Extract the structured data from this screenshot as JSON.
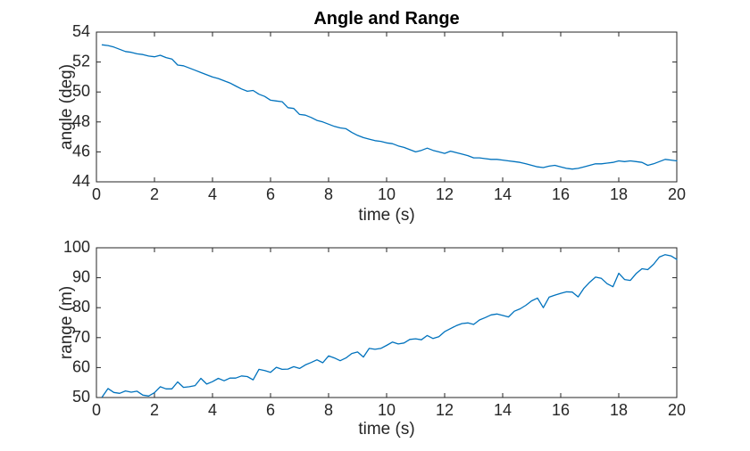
{
  "figure": {
    "title": "Angle and Range",
    "background_color": "#ffffff",
    "axis_color": "#262626",
    "line_color": "#0072BD"
  },
  "chart_data": [
    {
      "type": "line",
      "name": "angle",
      "title": "Angle and Range",
      "xlabel": "time (s)",
      "ylabel": "angle (deg)",
      "xlim": [
        0,
        20
      ],
      "ylim": [
        44,
        54
      ],
      "xticks": [
        0,
        2,
        4,
        6,
        8,
        10,
        12,
        14,
        16,
        18,
        20
      ],
      "yticks": [
        44,
        46,
        48,
        50,
        52,
        54
      ],
      "grid": false,
      "legend": null,
      "line_color": "#0072BD",
      "x": [
        0.2,
        0.4,
        0.6,
        0.8,
        1,
        1.2,
        1.4,
        1.6,
        1.8,
        2,
        2.2,
        2.4,
        2.6,
        2.8,
        3,
        3.2,
        3.4,
        3.6,
        3.8,
        4,
        4.2,
        4.4,
        4.6,
        4.8,
        5,
        5.2,
        5.4,
        5.6,
        5.8,
        6,
        6.2,
        6.4,
        6.6,
        6.8,
        7,
        7.2,
        7.4,
        7.6,
        7.8,
        8,
        8.2,
        8.4,
        8.6,
        8.8,
        9,
        9.2,
        9.4,
        9.6,
        9.8,
        10,
        10.2,
        10.4,
        10.6,
        10.8,
        11,
        11.2,
        11.4,
        11.6,
        11.8,
        12,
        12.2,
        12.4,
        12.6,
        12.8,
        13,
        13.2,
        13.4,
        13.6,
        13.8,
        14,
        14.2,
        14.4,
        14.6,
        14.8,
        15,
        15.2,
        15.4,
        15.6,
        15.8,
        16,
        16.2,
        16.4,
        16.6,
        16.8,
        17,
        17.2,
        17.4,
        17.6,
        17.8,
        18,
        18.2,
        18.4,
        18.6,
        18.8,
        19,
        19.2,
        19.4,
        19.6,
        19.8,
        20
      ],
      "y": [
        53.15,
        53.1,
        53.0,
        52.85,
        52.7,
        52.65,
        52.55,
        52.5,
        52.4,
        52.35,
        52.45,
        52.3,
        52.2,
        51.8,
        51.75,
        51.6,
        51.45,
        51.3,
        51.15,
        51.0,
        50.9,
        50.75,
        50.6,
        50.4,
        50.2,
        50.05,
        50.1,
        49.85,
        49.7,
        49.45,
        49.4,
        49.35,
        48.95,
        48.9,
        48.5,
        48.45,
        48.3,
        48.1,
        48.0,
        47.85,
        47.7,
        47.6,
        47.55,
        47.3,
        47.1,
        46.95,
        46.85,
        46.75,
        46.7,
        46.6,
        46.55,
        46.4,
        46.3,
        46.15,
        46.0,
        46.1,
        46.25,
        46.1,
        46.0,
        45.9,
        46.05,
        45.95,
        45.85,
        45.75,
        45.6,
        45.6,
        45.55,
        45.5,
        45.5,
        45.45,
        45.4,
        45.35,
        45.3,
        45.2,
        45.1,
        45.0,
        44.95,
        45.05,
        45.1,
        45.0,
        44.9,
        44.85,
        44.9,
        45.0,
        45.1,
        45.2,
        45.2,
        45.25,
        45.3,
        45.4,
        45.35,
        45.4,
        45.35,
        45.3,
        45.1,
        45.2,
        45.35,
        45.5,
        45.45,
        45.4
      ]
    },
    {
      "type": "line",
      "name": "range",
      "title": "",
      "xlabel": "time (s)",
      "ylabel": "range (m)",
      "xlim": [
        0,
        20
      ],
      "ylim": [
        50,
        100
      ],
      "xticks": [
        0,
        2,
        4,
        6,
        8,
        10,
        12,
        14,
        16,
        18,
        20
      ],
      "yticks": [
        50,
        60,
        70,
        80,
        90,
        100
      ],
      "grid": false,
      "legend": null,
      "line_color": "#0072BD",
      "x": [
        0.2,
        0.4,
        0.6,
        0.8,
        1,
        1.2,
        1.4,
        1.6,
        1.8,
        2,
        2.2,
        2.4,
        2.6,
        2.8,
        3,
        3.2,
        3.4,
        3.6,
        3.8,
        4,
        4.2,
        4.4,
        4.6,
        4.8,
        5,
        5.2,
        5.4,
        5.6,
        5.8,
        6,
        6.2,
        6.4,
        6.6,
        6.8,
        7,
        7.2,
        7.4,
        7.6,
        7.8,
        8,
        8.2,
        8.4,
        8.6,
        8.8,
        9,
        9.2,
        9.4,
        9.6,
        9.8,
        10,
        10.2,
        10.4,
        10.6,
        10.8,
        11,
        11.2,
        11.4,
        11.6,
        11.8,
        12,
        12.2,
        12.4,
        12.6,
        12.8,
        13,
        13.2,
        13.4,
        13.6,
        13.8,
        14,
        14.2,
        14.4,
        14.6,
        14.8,
        15,
        15.2,
        15.4,
        15.6,
        15.8,
        16,
        16.2,
        16.4,
        16.6,
        16.8,
        17,
        17.2,
        17.4,
        17.6,
        17.8,
        18,
        18.2,
        18.4,
        18.6,
        18.8,
        19,
        19.2,
        19.4,
        19.6,
        19.8,
        20
      ],
      "y": [
        50.2,
        53.0,
        51.7,
        51.4,
        52.2,
        51.8,
        52.1,
        50.8,
        50.5,
        51.6,
        53.6,
        52.9,
        52.9,
        55.2,
        53.4,
        53.6,
        54.0,
        56.4,
        54.5,
        55.3,
        56.4,
        55.6,
        56.5,
        56.5,
        57.2,
        57.0,
        55.9,
        59.4,
        59.0,
        58.4,
        60.1,
        59.4,
        59.5,
        60.3,
        59.7,
        60.9,
        61.7,
        62.6,
        61.6,
        63.9,
        63.2,
        62.3,
        63.2,
        64.7,
        65.2,
        63.5,
        66.4,
        66.1,
        66.4,
        67.4,
        68.5,
        67.9,
        68.2,
        69.4,
        69.6,
        69.3,
        70.7,
        69.7,
        70.3,
        72.0,
        73.0,
        74.0,
        74.7,
        74.9,
        74.4,
        75.9,
        76.7,
        77.6,
        77.9,
        77.4,
        76.9,
        78.8,
        79.6,
        80.8,
        82.3,
        83.2,
        80.0,
        83.5,
        84.2,
        84.8,
        85.3,
        85.2,
        83.6,
        86.5,
        88.5,
        90.2,
        89.8,
        88.0,
        87.0,
        91.5,
        89.4,
        89.1,
        91.4,
        93.0,
        92.7,
        94.5,
        96.9,
        97.7,
        97.3,
        96.1
      ]
    }
  ]
}
